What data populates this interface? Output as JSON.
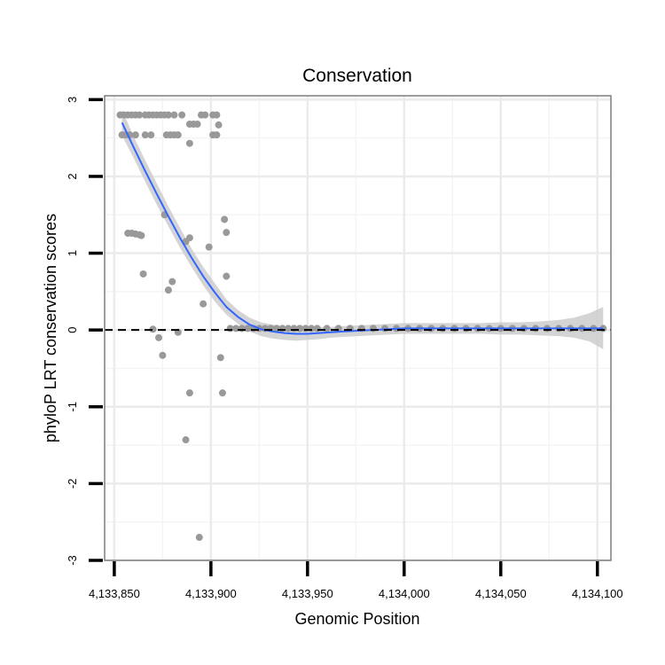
{
  "chart_data": {
    "type": "scatter",
    "title": "Conservation",
    "xlabel": "Genomic Position",
    "ylabel": "phyloP LRT conservation scores",
    "xlim": [
      4133845,
      4134107
    ],
    "ylim": [
      -3.0,
      3.05
    ],
    "x_ticks": [
      4133850,
      4133900,
      4133950,
      4134000,
      4134050,
      4134100
    ],
    "x_tick_labels": [
      "4,133,850",
      "4,133,900",
      "4,133,950",
      "4,134,000",
      "4,134,050",
      "4,134,100"
    ],
    "y_ticks": [
      -3,
      -2,
      -1,
      0,
      1,
      2,
      3
    ],
    "y_tick_labels": [
      "-3",
      "-2",
      "-1",
      "0",
      "1",
      "2",
      "3"
    ],
    "grid": true,
    "reference_line": {
      "y": 0,
      "style": "dashed",
      "color": "#000000"
    },
    "series": [
      {
        "name": "phyloP scores",
        "type": "scatter",
        "color": "#999999",
        "points": [
          [
            4133853,
            2.8
          ],
          [
            4133855,
            2.8
          ],
          [
            4133857,
            2.8
          ],
          [
            4133859,
            2.8
          ],
          [
            4133861,
            2.8
          ],
          [
            4133863,
            2.8
          ],
          [
            4133866,
            2.8
          ],
          [
            4133868,
            2.8
          ],
          [
            4133870,
            2.8
          ],
          [
            4133872,
            2.8
          ],
          [
            4133874,
            2.8
          ],
          [
            4133876,
            2.8
          ],
          [
            4133878,
            2.8
          ],
          [
            4133881,
            2.8
          ],
          [
            4133885,
            2.8
          ],
          [
            4133895,
            2.8
          ],
          [
            4133897,
            2.8
          ],
          [
            4133901,
            2.8
          ],
          [
            4133903,
            2.8
          ],
          [
            4133854,
            2.54
          ],
          [
            4133856,
            2.54
          ],
          [
            4133858,
            2.54
          ],
          [
            4133861,
            2.54
          ],
          [
            4133866,
            2.54
          ],
          [
            4133869,
            2.54
          ],
          [
            4133877,
            2.54
          ],
          [
            4133879,
            2.54
          ],
          [
            4133881,
            2.54
          ],
          [
            4133883,
            2.54
          ],
          [
            4133901,
            2.54
          ],
          [
            4133903,
            2.54
          ],
          [
            4133889,
            2.68
          ],
          [
            4133891,
            2.68
          ],
          [
            4133893,
            2.68
          ],
          [
            4133904,
            2.67
          ],
          [
            4133889,
            2.43
          ],
          [
            4133857,
            1.26
          ],
          [
            4133859,
            1.26
          ],
          [
            4133861,
            1.25
          ],
          [
            4133863,
            1.24
          ],
          [
            4133864,
            1.23
          ],
          [
            4133907,
            1.44
          ],
          [
            4133908,
            1.27
          ],
          [
            4133876,
            1.5
          ],
          [
            4133887,
            1.15
          ],
          [
            4133889,
            1.2
          ],
          [
            4133899,
            1.08
          ],
          [
            4133865,
            0.73
          ],
          [
            4133908,
            0.7
          ],
          [
            4133880,
            0.63
          ],
          [
            4133878,
            0.52
          ],
          [
            4133896,
            0.34
          ],
          [
            4133870,
            0.01
          ],
          [
            4133873,
            -0.1
          ],
          [
            4133875,
            -0.33
          ],
          [
            4133883,
            -0.03
          ],
          [
            4133905,
            -0.36
          ],
          [
            4133889,
            -0.82
          ],
          [
            4133906,
            -0.82
          ],
          [
            4133887,
            -1.43
          ],
          [
            4133894,
            -2.7
          ],
          [
            4133910,
            0.02
          ],
          [
            4133913,
            0.02
          ],
          [
            4133916,
            0.02
          ],
          [
            4133919,
            0.02
          ],
          [
            4133922,
            0.02
          ],
          [
            4133925,
            0.02
          ],
          [
            4133928,
            0.02
          ],
          [
            4133931,
            0.02
          ],
          [
            4133934,
            0.02
          ],
          [
            4133937,
            0.02
          ],
          [
            4133940,
            0.02
          ],
          [
            4133943,
            0.02
          ],
          [
            4133946,
            0.02
          ],
          [
            4133949,
            0.02
          ],
          [
            4133952,
            0.02
          ],
          [
            4133955,
            0.02
          ],
          [
            4133960,
            0.02
          ],
          [
            4133966,
            0.02
          ],
          [
            4133972,
            0.02
          ],
          [
            4133978,
            0.02
          ],
          [
            4133984,
            0.02
          ],
          [
            4133990,
            0.02
          ],
          [
            4133996,
            0.02
          ],
          [
            4134002,
            0.02
          ],
          [
            4134008,
            0.02
          ],
          [
            4134014,
            0.02
          ],
          [
            4134020,
            0.02
          ],
          [
            4134026,
            0.02
          ],
          [
            4134032,
            0.02
          ],
          [
            4134038,
            0.02
          ],
          [
            4134044,
            0.02
          ],
          [
            4134050,
            0.02
          ],
          [
            4134056,
            0.02
          ],
          [
            4134062,
            0.02
          ],
          [
            4134068,
            0.02
          ],
          [
            4134074,
            0.02
          ],
          [
            4134080,
            0.02
          ],
          [
            4134086,
            0.02
          ],
          [
            4134092,
            0.02
          ],
          [
            4134098,
            0.02
          ],
          [
            4134103,
            0.02
          ]
        ]
      },
      {
        "name": "smooth fit",
        "type": "line",
        "color": "#3366ff",
        "band_color": "#cccccc",
        "points": [
          [
            4133854,
            2.7,
            2.53,
            2.87
          ],
          [
            4133860,
            2.38,
            2.24,
            2.52
          ],
          [
            4133866,
            2.07,
            1.93,
            2.21
          ],
          [
            4133872,
            1.77,
            1.63,
            1.91
          ],
          [
            4133878,
            1.48,
            1.35,
            1.61
          ],
          [
            4133884,
            1.2,
            1.07,
            1.33
          ],
          [
            4133890,
            0.94,
            0.82,
            1.06
          ],
          [
            4133896,
            0.7,
            0.58,
            0.82
          ],
          [
            4133902,
            0.49,
            0.37,
            0.61
          ],
          [
            4133908,
            0.3,
            0.2,
            0.4
          ],
          [
            4133914,
            0.17,
            0.08,
            0.26
          ],
          [
            4133920,
            0.07,
            -0.02,
            0.16
          ],
          [
            4133926,
            0.01,
            -0.08,
            0.1
          ],
          [
            4133932,
            -0.02,
            -0.11,
            0.07
          ],
          [
            4133938,
            -0.04,
            -0.13,
            0.05
          ],
          [
            4133944,
            -0.05,
            -0.14,
            0.04
          ],
          [
            4133950,
            -0.05,
            -0.13,
            0.03
          ],
          [
            4133956,
            -0.04,
            -0.12,
            0.04
          ],
          [
            4133962,
            -0.03,
            -0.1,
            0.04
          ],
          [
            4133968,
            -0.02,
            -0.09,
            0.05
          ],
          [
            4133976,
            -0.01,
            -0.08,
            0.06
          ],
          [
            4133984,
            0.0,
            -0.07,
            0.07
          ],
          [
            4133992,
            0.01,
            -0.06,
            0.08
          ],
          [
            4134000,
            0.02,
            -0.05,
            0.09
          ],
          [
            4134010,
            0.02,
            -0.05,
            0.09
          ],
          [
            4134020,
            0.02,
            -0.05,
            0.09
          ],
          [
            4134030,
            0.02,
            -0.05,
            0.09
          ],
          [
            4134040,
            0.02,
            -0.05,
            0.09
          ],
          [
            4134050,
            0.02,
            -0.06,
            0.1
          ],
          [
            4134060,
            0.02,
            -0.06,
            0.1
          ],
          [
            4134070,
            0.02,
            -0.07,
            0.11
          ],
          [
            4134080,
            0.02,
            -0.08,
            0.13
          ],
          [
            4134088,
            0.02,
            -0.1,
            0.16
          ],
          [
            4134096,
            0.02,
            -0.15,
            0.22
          ],
          [
            4134103,
            0.02,
            -0.25,
            0.3
          ]
        ]
      }
    ]
  }
}
